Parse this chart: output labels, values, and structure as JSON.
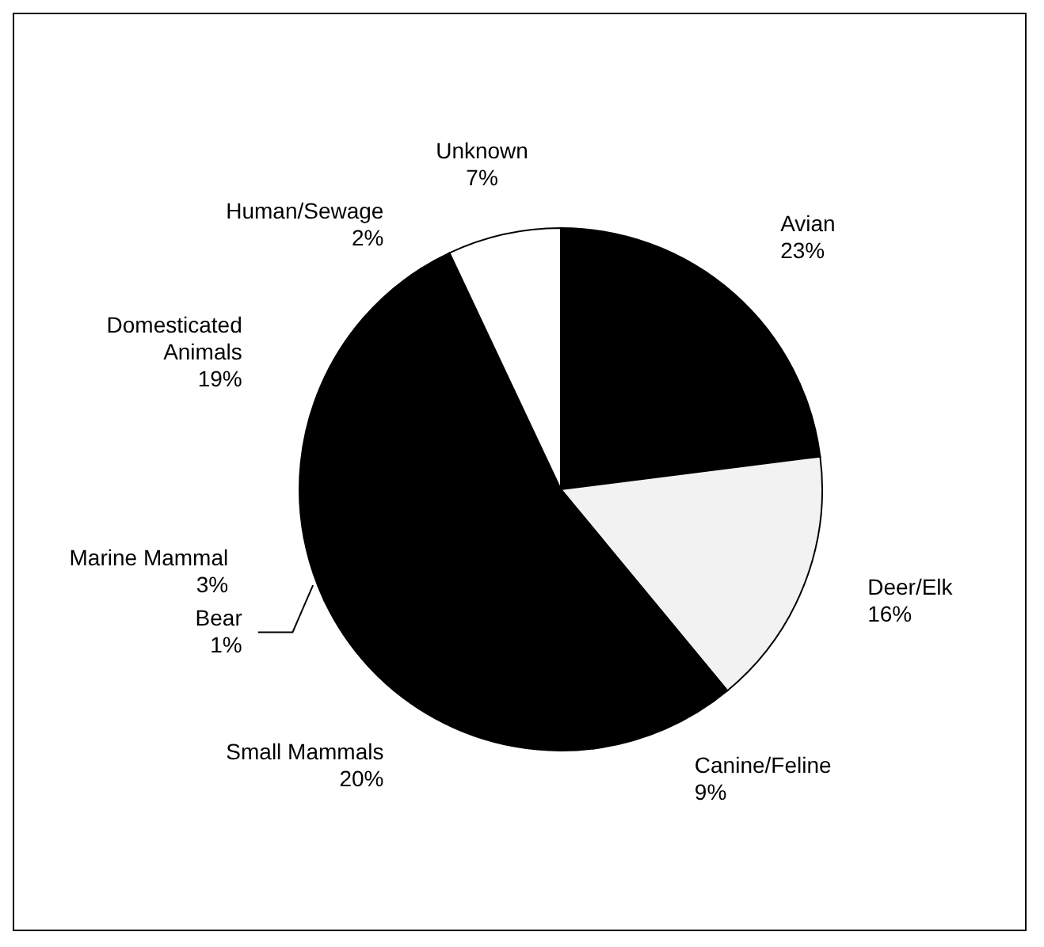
{
  "chart_data": {
    "type": "pie",
    "categories": [
      "Avian",
      "Deer/Elk",
      "Canine/Feline",
      "Small Mammals",
      "Bear",
      "Marine Mammal",
      "Domesticated Animals",
      "Human/Sewage",
      "Unknown"
    ],
    "values": [
      23,
      16,
      9,
      20,
      1,
      3,
      19,
      2,
      7
    ],
    "value_labels": [
      "23%",
      "16%",
      "9%",
      "20%",
      "1%",
      "3%",
      "19%",
      "2%",
      "7%"
    ],
    "colors": [
      "#000000",
      "#f2f2f2",
      "#000000",
      "#000000",
      "#000000",
      "#000000",
      "#000000",
      "#000000",
      "#ffffff"
    ],
    "legend": false
  }
}
